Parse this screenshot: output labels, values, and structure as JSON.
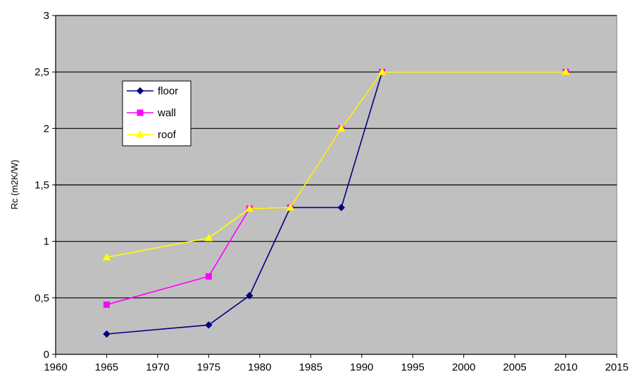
{
  "chart_data": {
    "type": "line",
    "ylabel": "Rc (m2K/W)",
    "xlim": [
      1960,
      2015
    ],
    "ylim": [
      0,
      3
    ],
    "x_ticks": [
      "1960",
      "1965",
      "1970",
      "1975",
      "1980",
      "1985",
      "1990",
      "1995",
      "2000",
      "2005",
      "2010",
      "2015"
    ],
    "y_ticks": [
      "0",
      "0,5",
      "1",
      "1,5",
      "2",
      "2,5",
      "3"
    ],
    "grid": "horizontal",
    "legend_position": "upper-left",
    "plot_background": "#c0c0c0",
    "series": [
      {
        "name": "floor",
        "color": "#000080",
        "marker": "diamond",
        "x": [
          1965,
          1975,
          1979,
          1983,
          1988,
          1992,
          2010
        ],
        "y": [
          0.18,
          0.26,
          0.52,
          1.3,
          1.3,
          2.5,
          2.5
        ]
      },
      {
        "name": "wall",
        "color": "#ff00ff",
        "marker": "square",
        "x": [
          1965,
          1975,
          1979,
          1983,
          1988,
          1992,
          2010
        ],
        "y": [
          0.44,
          0.69,
          1.29,
          1.3,
          2.0,
          2.5,
          2.5
        ]
      },
      {
        "name": "roof",
        "color": "#ffff00",
        "marker": "triangle",
        "x": [
          1965,
          1975,
          1979,
          1983,
          1988,
          1992,
          2010
        ],
        "y": [
          0.86,
          1.03,
          1.29,
          1.3,
          2.0,
          2.5,
          2.5
        ]
      }
    ]
  }
}
